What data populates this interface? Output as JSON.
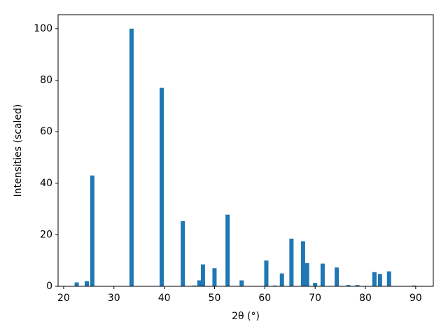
{
  "chart_data": {
    "type": "bar",
    "x_label": "2θ (°)",
    "y_label": "Intensities (scaled)",
    "x": [
      22.6,
      24.6,
      25.7,
      33.5,
      39.5,
      43.7,
      45.9,
      47.0,
      47.7,
      50.0,
      52.6,
      55.4,
      60.3,
      62.0,
      63.4,
      65.3,
      67.6,
      68.4,
      70.0,
      71.5,
      74.3,
      76.6,
      78.4,
      81.8,
      82.9,
      84.7,
      89.6
    ],
    "values": [
      1.5,
      2,
      43,
      100,
      77,
      25.3,
      0.3,
      2.3,
      8.5,
      7,
      27.8,
      2.3,
      10,
      0.3,
      5,
      18.5,
      17.5,
      9,
      1.3,
      8.8,
      7.3,
      0.5,
      0.5,
      5.5,
      4.8,
      5.8,
      0.3
    ],
    "color": "#1f77b4",
    "xlim": [
      18.9,
      93.5
    ],
    "ylim": [
      0,
      105.4
    ],
    "xticks": [
      20,
      30,
      40,
      50,
      60,
      70,
      80,
      90
    ],
    "yticks": [
      0,
      20,
      40,
      60,
      80,
      100
    ],
    "grid": false
  }
}
